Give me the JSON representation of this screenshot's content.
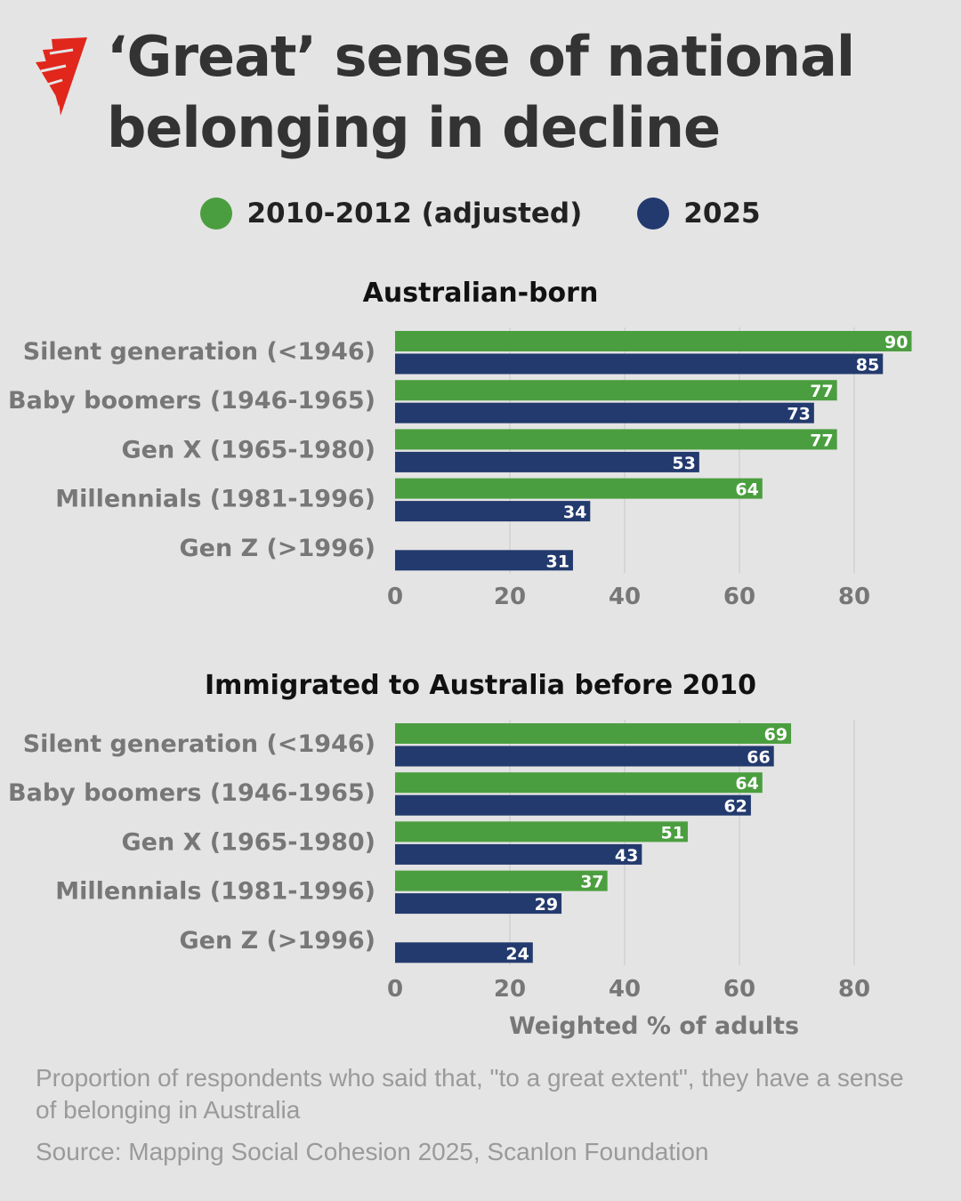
{
  "title": "‘Great’ sense of national belonging in decline",
  "colors": {
    "series1": "#4b9e3f",
    "series2": "#233a6e",
    "background": "#e4e4e4",
    "logo": "#e1261c"
  },
  "logo_icon": "sbs-logo-icon",
  "legend": [
    "2010-2012 (adjusted)",
    "2025"
  ],
  "chart_data": [
    {
      "type": "bar",
      "orientation": "horizontal",
      "title": "Australian-born",
      "categories": [
        "Silent generation (<1946)",
        "Baby boomers (1946-1965)",
        "Gen X (1965-1980)",
        "Millennials (1981-1996)",
        "Gen Z (>1996)"
      ],
      "series": [
        {
          "name": "2010-2012 (adjusted)",
          "values": [
            90,
            77,
            77,
            64,
            null
          ]
        },
        {
          "name": "2025",
          "values": [
            85,
            73,
            53,
            34,
            31
          ]
        }
      ],
      "xticks": [
        "0",
        "20",
        "40",
        "60",
        "80"
      ],
      "xlim": [
        0,
        90
      ],
      "xlabel": "",
      "grid": true
    },
    {
      "type": "bar",
      "orientation": "horizontal",
      "title": "Immigrated to Australia before 2010",
      "categories": [
        "Silent generation (<1946)",
        "Baby boomers (1946-1965)",
        "Gen X (1965-1980)",
        "Millennials (1981-1996)",
        "Gen Z (>1996)"
      ],
      "series": [
        {
          "name": "2010-2012 (adjusted)",
          "values": [
            69,
            64,
            51,
            37,
            null
          ]
        },
        {
          "name": "2025",
          "values": [
            66,
            62,
            43,
            29,
            24
          ]
        }
      ],
      "xticks": [
        "0",
        "20",
        "40",
        "60",
        "80"
      ],
      "xlim": [
        0,
        90
      ],
      "xlabel": "Weighted % of adults",
      "grid": true
    }
  ],
  "footer": {
    "note": "Proportion of respondents who said that, \"to a great extent\", they have a sense of belonging in Australia",
    "source": "Source: Mapping Social Cohesion 2025, Scanlon Foundation"
  }
}
